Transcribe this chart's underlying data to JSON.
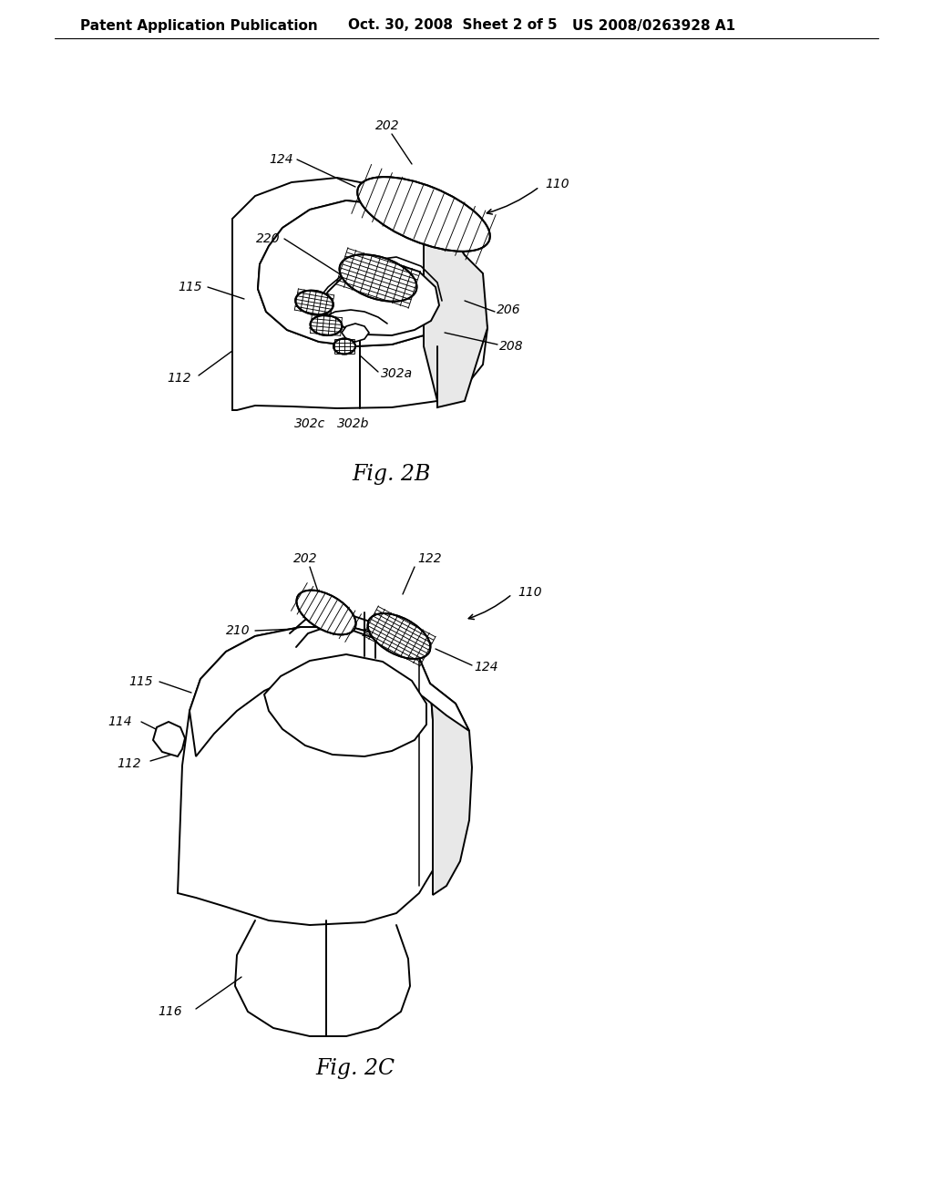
{
  "bg_color": "#ffffff",
  "line_color": "#000000",
  "header_text": "Patent Application Publication",
  "header_date": "Oct. 30, 2008  Sheet 2 of 5",
  "header_patent": "US 2008/0263928 A1",
  "fig2b_label": "Fig. 2B",
  "fig2c_label": "Fig. 2C",
  "header_fontsize": 11,
  "label_fontsize": 10,
  "fig_label_fontsize": 17
}
